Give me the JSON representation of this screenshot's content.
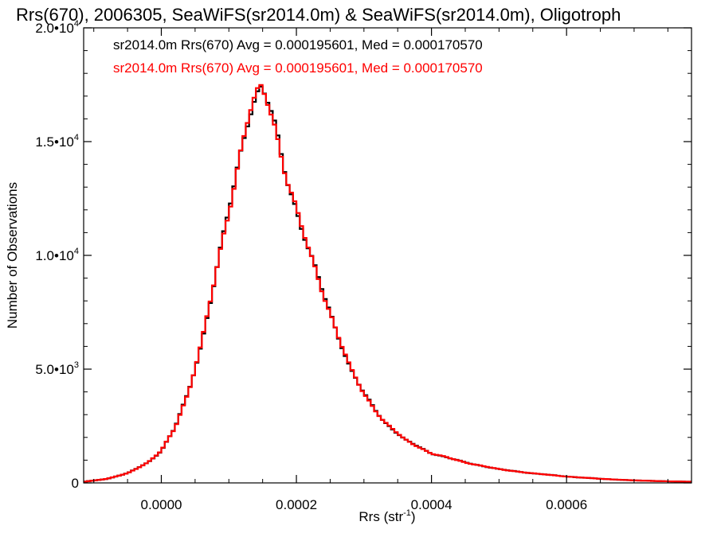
{
  "chart_data": {
    "type": "histogram",
    "title": "Rrs(670), 2006305, SeaWiFS(sr2014.0m) & SeaWiFS(sr2014.0m), Oligotroph",
    "xlabel": "Rrs (str",
    "xlabel_sup": "-1",
    "xlabel_tail": ")",
    "ylabel": "Number of Observations",
    "xlim": [
      -0.000115,
      0.000785
    ],
    "ylim": [
      0,
      20000
    ],
    "x_ticks": [
      {
        "value": 0.0,
        "label": "0.0000"
      },
      {
        "value": 0.0002,
        "label": "0.0002"
      },
      {
        "value": 0.0004,
        "label": "0.0004"
      },
      {
        "value": 0.0006,
        "label": "0.0006"
      }
    ],
    "y_ticks": [
      {
        "value": 0,
        "label": "0",
        "exp": ""
      },
      {
        "value": 5000,
        "label": "5.0•10",
        "exp": "3"
      },
      {
        "value": 10000,
        "label": "1.0•10",
        "exp": "4"
      },
      {
        "value": 15000,
        "label": "1.5•10",
        "exp": "4"
      },
      {
        "value": 20000,
        "label": "2.0•10",
        "exp": "4"
      }
    ],
    "annotations": [
      {
        "text": "sr2014.0m Rrs(670) Avg = 0.000195601, Med = 0.000170570",
        "color": "#000000"
      },
      {
        "text": "sr2014.0m Rrs(670) Avg = 0.000195601, Med = 0.000170570",
        "color": "#ff0000"
      }
    ],
    "series": [
      {
        "color": "#000000",
        "points": [
          [
            -0.000115,
            50
          ],
          [
            -8e-05,
            180
          ],
          [
            -5e-05,
            420
          ],
          [
            -2e-05,
            900
          ],
          [
            0.0,
            1400
          ],
          [
            2e-05,
            2400
          ],
          [
            4e-05,
            4000
          ],
          [
            6e-05,
            6200
          ],
          [
            8e-05,
            9000
          ],
          [
            0.0001,
            12000
          ],
          [
            0.00011,
            13500
          ],
          [
            0.00012,
            15000
          ],
          [
            0.00013,
            16300
          ],
          [
            0.00014,
            16900
          ],
          [
            0.000148,
            17200
          ],
          [
            0.000155,
            16900
          ],
          [
            0.000165,
            16000
          ],
          [
            0.000175,
            14800
          ],
          [
            0.000185,
            13600
          ],
          [
            0.0002,
            12000
          ],
          [
            0.00022,
            10000
          ],
          [
            0.00025,
            7500
          ],
          [
            0.00028,
            5000
          ],
          [
            0.0003,
            3900
          ],
          [
            0.00033,
            2700
          ],
          [
            0.00036,
            1900
          ],
          [
            0.0004,
            1300
          ],
          [
            0.00045,
            900
          ],
          [
            0.0005,
            600
          ],
          [
            0.00055,
            420
          ],
          [
            0.0006,
            280
          ],
          [
            0.00065,
            180
          ],
          [
            0.0007,
            110
          ],
          [
            0.00075,
            70
          ],
          [
            0.000785,
            50
          ]
        ]
      },
      {
        "color": "#ff0000",
        "points": [
          [
            -0.000115,
            50
          ],
          [
            -8e-05,
            180
          ],
          [
            -5e-05,
            420
          ],
          [
            -2e-05,
            900
          ],
          [
            0.0,
            1400
          ],
          [
            2e-05,
            2400
          ],
          [
            4e-05,
            4000
          ],
          [
            6e-05,
            6200
          ],
          [
            8e-05,
            9000
          ],
          [
            0.0001,
            12000
          ],
          [
            0.00011,
            13500
          ],
          [
            0.00012,
            15000
          ],
          [
            0.00013,
            16300
          ],
          [
            0.00014,
            16900
          ],
          [
            0.000148,
            17200
          ],
          [
            0.000155,
            16900
          ],
          [
            0.000165,
            16000
          ],
          [
            0.000175,
            14800
          ],
          [
            0.000185,
            13600
          ],
          [
            0.0002,
            12000
          ],
          [
            0.00022,
            10000
          ],
          [
            0.00025,
            7500
          ],
          [
            0.00028,
            5000
          ],
          [
            0.0003,
            3900
          ],
          [
            0.00033,
            2700
          ],
          [
            0.00036,
            1900
          ],
          [
            0.0004,
            1300
          ],
          [
            0.00045,
            900
          ],
          [
            0.0005,
            600
          ],
          [
            0.00055,
            420
          ],
          [
            0.0006,
            280
          ],
          [
            0.00065,
            180
          ],
          [
            0.0007,
            110
          ],
          [
            0.00075,
            70
          ],
          [
            0.000785,
            50
          ]
        ]
      }
    ]
  }
}
